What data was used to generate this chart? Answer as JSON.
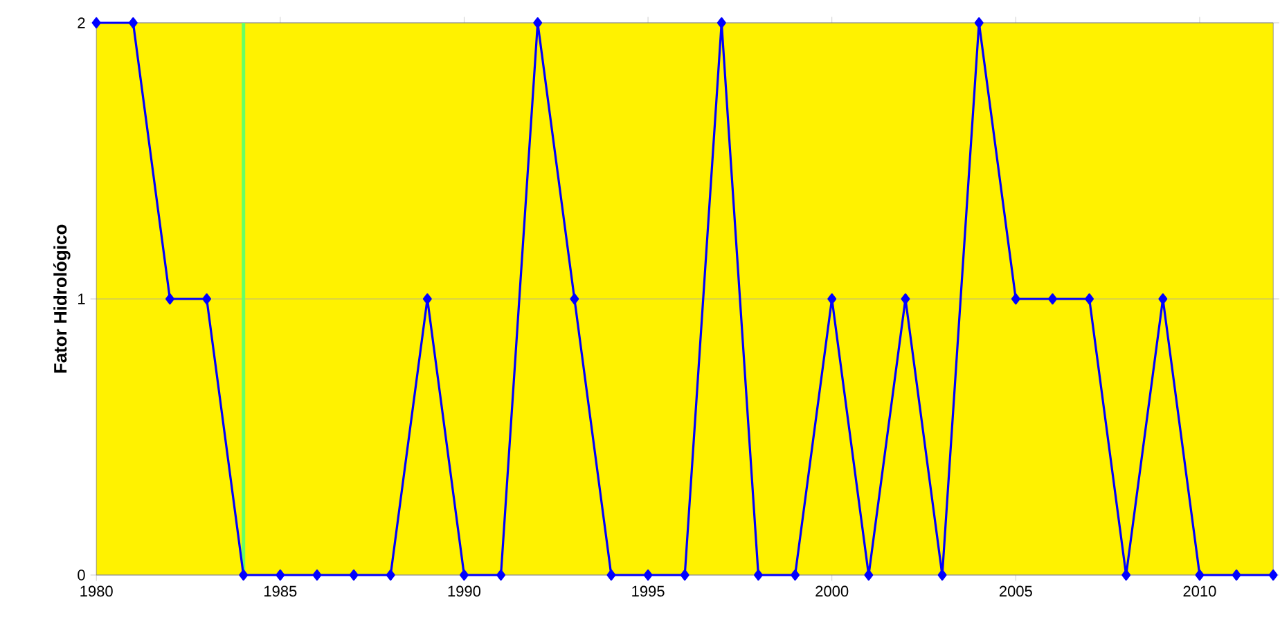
{
  "chart_data": {
    "type": "line",
    "ylabel": "Fator Hidrológico",
    "x": [
      1980,
      1981,
      1982,
      1983,
      1984,
      1985,
      1986,
      1987,
      1988,
      1989,
      1990,
      1991,
      1992,
      1993,
      1994,
      1995,
      1996,
      1997,
      1998,
      1999,
      2000,
      2001,
      2002,
      2003,
      2004,
      2005,
      2006,
      2007,
      2008,
      2009,
      2010,
      2011,
      2012
    ],
    "series": [
      {
        "color": "#0000ff",
        "values": [
          2,
          2,
          1,
          1,
          0,
          0,
          0,
          0,
          0,
          1,
          0,
          0,
          2,
          1,
          0,
          0,
          0,
          2,
          0,
          0,
          1,
          0,
          1,
          0,
          2,
          1,
          1,
          1,
          0,
          1,
          0,
          0,
          0
        ]
      }
    ],
    "xlim": [
      1980,
      2012
    ],
    "ylim": [
      0,
      2
    ],
    "xticks": [
      1980,
      1985,
      1990,
      1995,
      2000,
      2005,
      2010
    ],
    "yticks": [
      0,
      1,
      2
    ],
    "ref_lines": [
      {
        "axis": "x",
        "value": 1984,
        "color": "#66ff66"
      }
    ],
    "grid": "y",
    "marker": "diamond",
    "line_style": "solid"
  }
}
